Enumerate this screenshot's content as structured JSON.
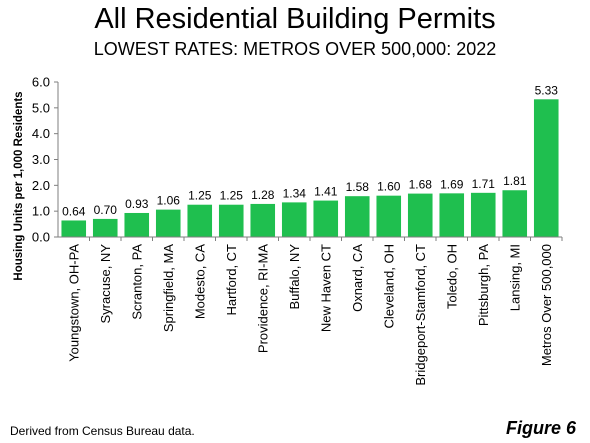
{
  "chart_data": {
    "type": "bar",
    "title": "All Residential Building Permits",
    "subtitle": "LOWEST RATES: METROS OVER 500,000: 2022",
    "ylabel": "Housing Units per 1,000 Residents",
    "xlabel": "",
    "ylim": [
      0,
      6
    ],
    "yticks": [
      "0.0",
      "1.0",
      "2.0",
      "3.0",
      "4.0",
      "5.0",
      "6.0"
    ],
    "grid": false,
    "legend": "none",
    "bar_color": "#1fbf4f",
    "categories": [
      "Youngstown, OH-PA",
      "Syracuse, NY",
      "Scranton, PA",
      "Springfield, MA",
      "Modesto, CA",
      "Hartford, CT",
      "Providence, RI-MA",
      "Buffalo, NY",
      "New Haven CT",
      "Oxnard, CA",
      "Cleveland, OH",
      "Bridgeport-Stamford, CT",
      "Toledo, OH",
      "Pittsburgh, PA",
      "Lansing, MI",
      "Metros Over 500,000"
    ],
    "values": [
      0.64,
      0.7,
      0.93,
      1.06,
      1.25,
      1.25,
      1.28,
      1.34,
      1.41,
      1.58,
      1.6,
      1.68,
      1.69,
      1.71,
      1.81,
      5.33
    ],
    "data_labels": [
      "0.64",
      "0.70",
      "0.93",
      "1.06",
      "1.25",
      "1.25",
      "1.28",
      "1.34",
      "1.41",
      "1.58",
      "1.60",
      "1.68",
      "1.69",
      "1.71",
      "1.81",
      "5.33"
    ]
  },
  "footer": {
    "source": "Derived from Census Bureau data.",
    "figure": "Figure 6"
  }
}
